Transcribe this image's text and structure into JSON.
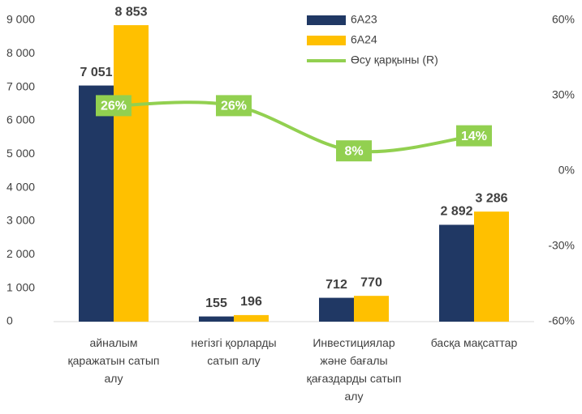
{
  "chart_data": {
    "type": "bar",
    "categories": [
      "айналым қаражатын сатып алу",
      "негізгі қорларды сатып алу",
      "Инвестициялар және бағалы қағаздарды сатып алу",
      "басқа мақсаттар"
    ],
    "series": [
      {
        "name": "6А23",
        "color": "#203864",
        "values": [
          7051,
          155,
          712,
          2892
        ],
        "value_labels": [
          "7 051",
          "155",
          "712",
          "2 892"
        ]
      },
      {
        "name": "6А24",
        "color": "#ffc000",
        "values": [
          8853,
          196,
          770,
          3286
        ],
        "value_labels": [
          "8 853",
          "196",
          "770",
          "3 286"
        ]
      },
      {
        "name": "Өсу қарқыны (R)",
        "type": "line",
        "axis": "y2",
        "color": "#92d050",
        "values": [
          26,
          26,
          8,
          14
        ],
        "value_labels": [
          "26%",
          "26%",
          "8%",
          "14%"
        ]
      }
    ],
    "ylim": [
      0,
      9000
    ],
    "yticks": [
      {
        "value": 0,
        "label": "0"
      },
      {
        "value": 1000,
        "label": "1 000"
      },
      {
        "value": 2000,
        "label": "2 000"
      },
      {
        "value": 3000,
        "label": "3 000"
      },
      {
        "value": 4000,
        "label": "4 000"
      },
      {
        "value": 5000,
        "label": "5 000"
      },
      {
        "value": 6000,
        "label": "6 000"
      },
      {
        "value": 7000,
        "label": "7 000"
      },
      {
        "value": 8000,
        "label": "8 000"
      },
      {
        "value": 9000,
        "label": "9 000"
      }
    ],
    "y2lim": [
      -60,
      60
    ],
    "y2ticks": [
      {
        "value": -60,
        "label": "-60%"
      },
      {
        "value": -30,
        "label": "-30%"
      },
      {
        "value": 0,
        "label": "0%"
      },
      {
        "value": 30,
        "label": "30%"
      },
      {
        "value": 60,
        "label": "60%"
      }
    ],
    "grid": false,
    "legend": "top"
  }
}
